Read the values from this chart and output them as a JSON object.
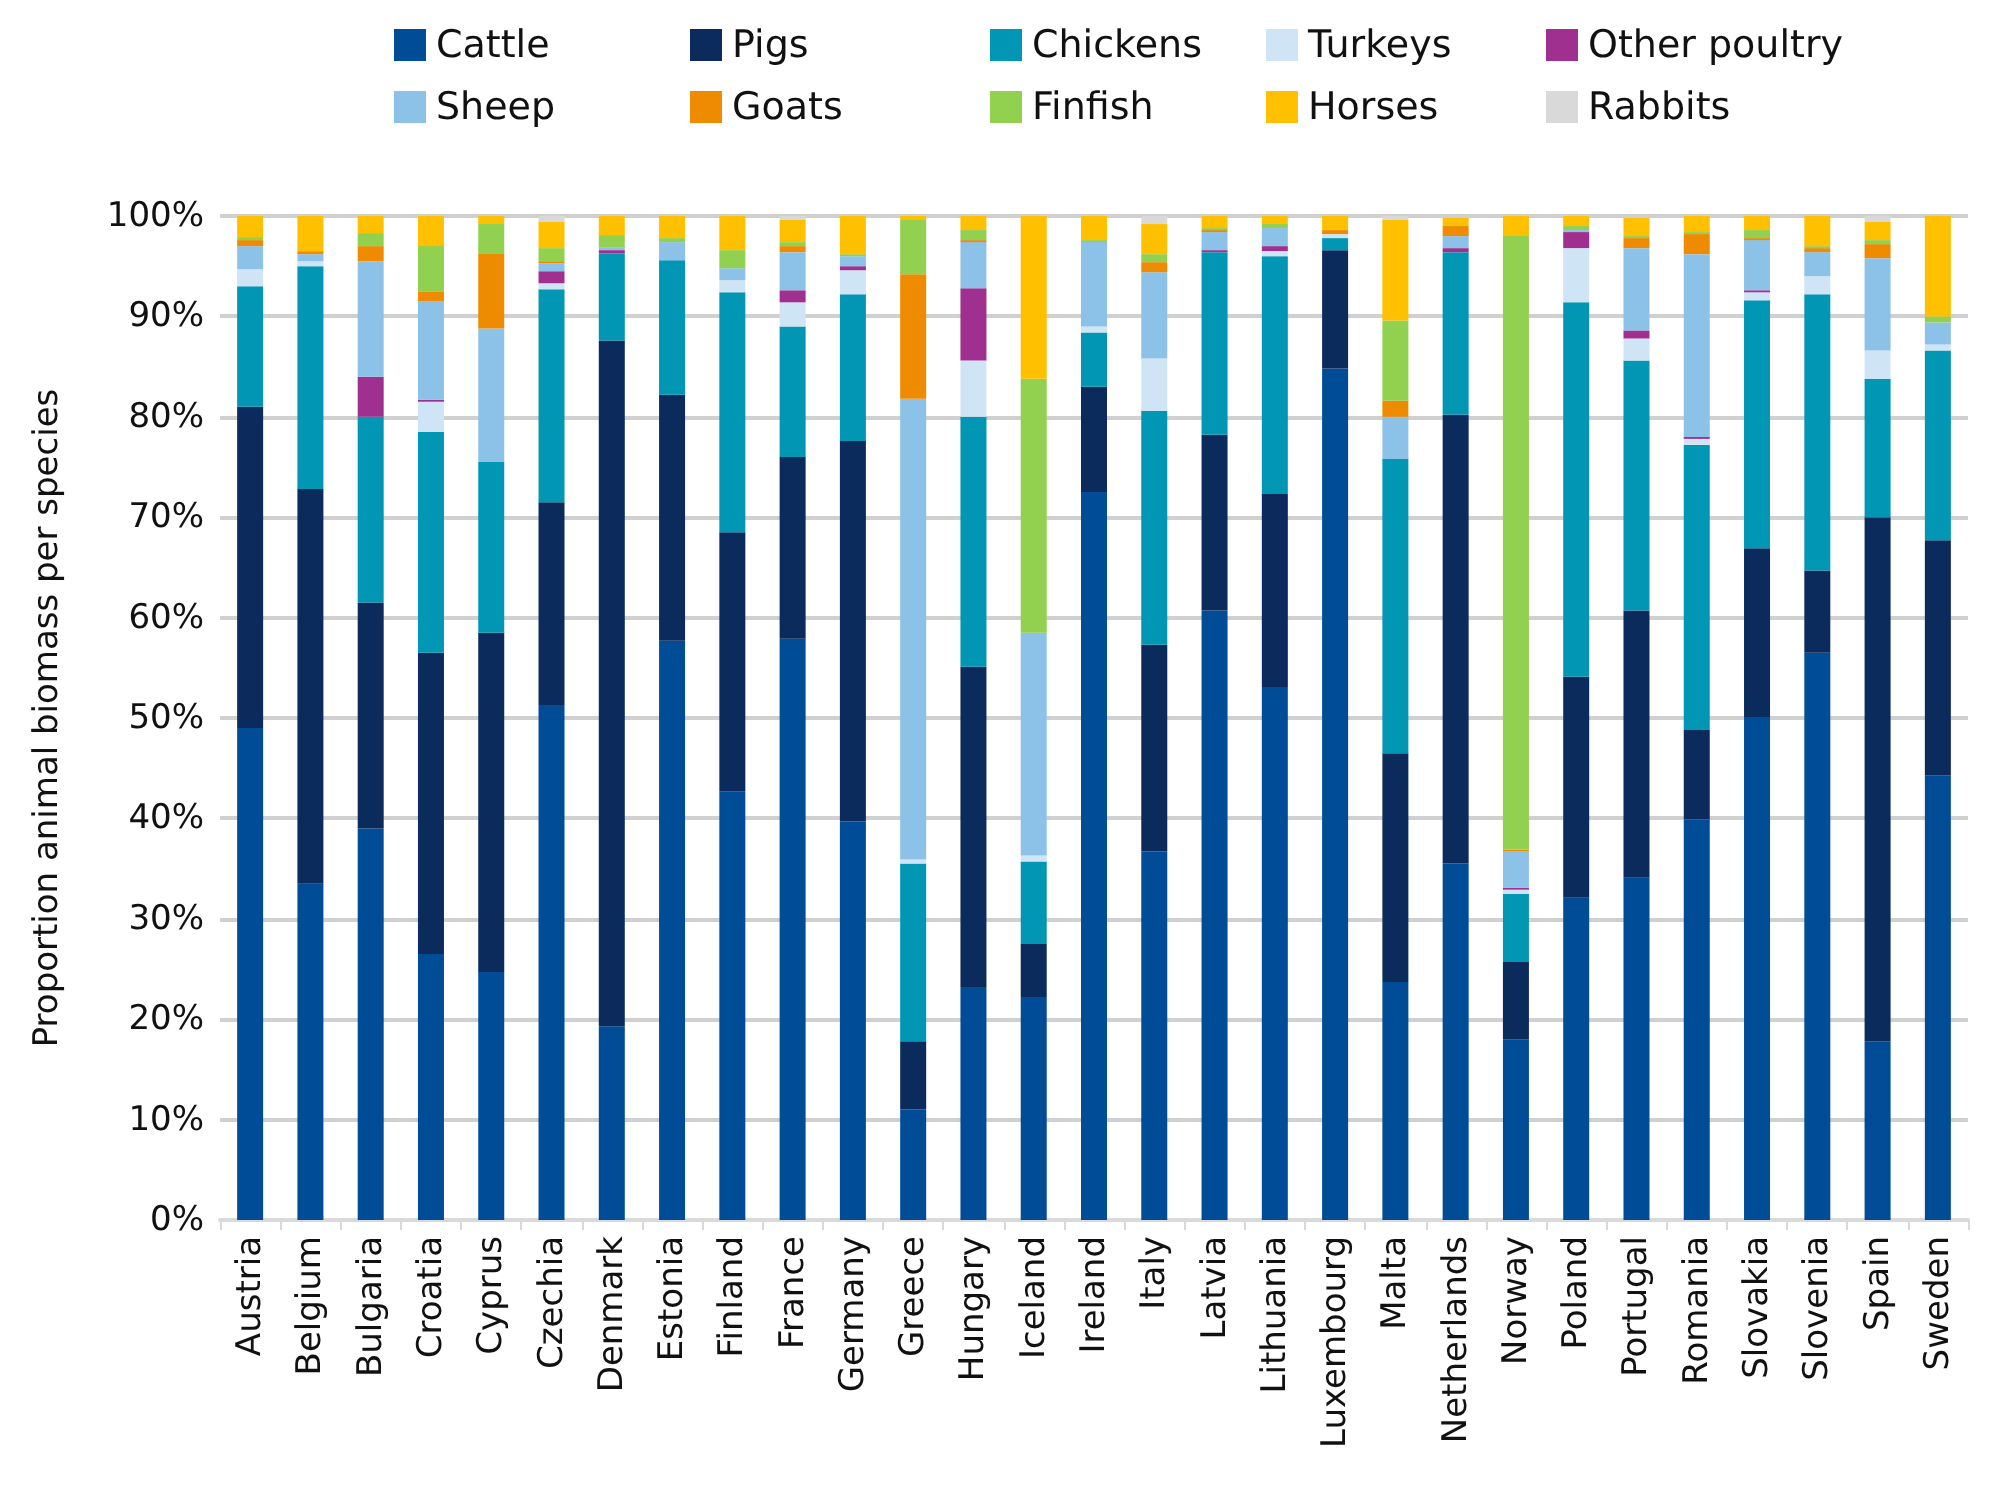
{
  "chart_data": {
    "type": "bar",
    "stacked": true,
    "ylabel": "Proportion animal biomass per species",
    "legend": "top",
    "grid": "y",
    "categories": [
      "Austria",
      "Belgium",
      "Bulgaria",
      "Croatia",
      "Cyprus",
      "Czechia",
      "Denmark",
      "Estonia",
      "Finland",
      "France",
      "Germany",
      "Greece",
      "Hungary",
      "Iceland",
      "Ireland",
      "Italy",
      "Latvia",
      "Lithuania",
      "Luxembourg",
      "Malta",
      "Netherlands",
      "Norway",
      "Poland",
      "Portugal",
      "Romania",
      "Slovakia",
      "Slovenia",
      "Spain",
      "Sweden"
    ],
    "ylim": [
      0,
      100
    ],
    "yticks": [
      {
        "value": 0,
        "label": "0%"
      },
      {
        "value": 10,
        "label": "10%"
      },
      {
        "value": 20,
        "label": "20%"
      },
      {
        "value": 30,
        "label": "30%"
      },
      {
        "value": 40,
        "label": "40%"
      },
      {
        "value": 50,
        "label": "50%"
      },
      {
        "value": 60,
        "label": "60%"
      },
      {
        "value": 70,
        "label": "70%"
      },
      {
        "value": 80,
        "label": "80%"
      },
      {
        "value": 90,
        "label": "90%"
      },
      {
        "value": 100,
        "label": "100%"
      }
    ],
    "series": [
      {
        "name": "Cattle",
        "color": "#004c97",
        "values": [
          49,
          33.5,
          39,
          26.5,
          24.7,
          51.3,
          19.3,
          57.7,
          42.7,
          57.9,
          39.7,
          11,
          23.2,
          22.2,
          72.5,
          36.7,
          60.7,
          53.1,
          84.8,
          23.7,
          35.5,
          18,
          32.1,
          34.1,
          39.9,
          50.1,
          56.5,
          17.8,
          44.3
        ]
      },
      {
        "name": "Pigs",
        "color": "#0a2b5c",
        "values": [
          32,
          39.3,
          22.5,
          30,
          33.8,
          20.2,
          68.3,
          24.5,
          25.8,
          18.1,
          37.9,
          6.8,
          31.9,
          5.3,
          10.5,
          20.6,
          17.5,
          19.2,
          11.8,
          22.8,
          44.7,
          7.7,
          22,
          26.6,
          8.9,
          16.8,
          8.2,
          52.2,
          23.4
        ]
      },
      {
        "name": "Chickens",
        "color": "#0096b4",
        "values": [
          12,
          22.2,
          18.5,
          22,
          17,
          21.2,
          8.7,
          13.4,
          23.9,
          13,
          14.6,
          17.7,
          24.9,
          8.2,
          5.4,
          23.3,
          18.2,
          23.7,
          1.2,
          29.3,
          16.2,
          6.8,
          37.3,
          24.9,
          28.4,
          24.7,
          27.5,
          13.8,
          18.9
        ]
      },
      {
        "name": "Turkeys",
        "color": "#cfe5f5",
        "values": [
          1.7,
          0.5,
          0,
          3,
          0,
          0.6,
          0,
          0,
          1.2,
          2.4,
          2.4,
          0.4,
          5.6,
          0.6,
          0.6,
          5.2,
          0,
          0.5,
          0.4,
          0,
          null,
          0.4,
          5.4,
          2.2,
          0.6,
          0.8,
          1.8,
          2.8,
          0.6
        ]
      },
      {
        "name": "Other poultry",
        "color": "#a0308f",
        "values": [
          0,
          0,
          4,
          0.2,
          0,
          1.2,
          0.3,
          0,
          0,
          1.2,
          0.4,
          0,
          7.2,
          0,
          0,
          0,
          0.2,
          0.5,
          0,
          0,
          0.4,
          0.2,
          1.6,
          0.8,
          0.2,
          0.2,
          0,
          0,
          0
        ]
      },
      {
        "name": "Sheep",
        "color": "#8dc2e8",
        "values": [
          2.3,
          0.7,
          11.5,
          9.8,
          13.3,
          0.8,
          0.3,
          1.8,
          1.2,
          3.8,
          1,
          45.9,
          4.6,
          22.2,
          8.4,
          8.6,
          1.8,
          1.8,
          0,
          4.2,
          1.2,
          3.6,
          0.2,
          8.2,
          18.2,
          5,
          2.4,
          9.2,
          2.2
        ]
      },
      {
        "name": "Goats",
        "color": "#ee8b00",
        "values": [
          0.6,
          0.3,
          1.5,
          1,
          7.5,
          0.2,
          0,
          0,
          0,
          0.6,
          0,
          12.4,
          0.2,
          0,
          0,
          1,
          0.2,
          0,
          0.4,
          1.6,
          1,
          0.2,
          0,
          1,
          2,
          0.2,
          0.4,
          1.4,
          0
        ]
      },
      {
        "name": "Finfish",
        "color": "#92d050",
        "values": [
          0.3,
          0,
          1.3,
          4.5,
          2.9,
          1.3,
          1.2,
          0.4,
          1.8,
          0.4,
          0.2,
          5.4,
          1,
          25.3,
          0.2,
          0.8,
          0.2,
          0.4,
          0,
          8,
          0,
          61.1,
          0.4,
          0.2,
          0.2,
          0.8,
          0.2,
          0.4,
          0.6
        ]
      },
      {
        "name": "Horses",
        "color": "#ffc000",
        "values": [
          2.1,
          3.5,
          1.7,
          3,
          0.8,
          2.6,
          1.9,
          2.2,
          3.4,
          2.2,
          3.8,
          0.4,
          1.4,
          16.2,
          2.4,
          3,
          1.2,
          0.8,
          1.4,
          10,
          0.8,
          2,
          1,
          1.8,
          1.6,
          1.4,
          3,
          1.8,
          10
        ]
      },
      {
        "name": "Rabbits",
        "color": "#d9d9d9",
        "values": [
          0,
          0,
          0,
          0,
          0,
          0.6,
          0,
          0,
          0,
          0.4,
          0,
          0,
          0,
          0,
          0,
          0.8,
          0,
          0,
          0,
          0.4,
          0,
          0,
          0,
          null,
          0,
          0,
          0,
          0.6,
          0
        ]
      }
    ]
  }
}
